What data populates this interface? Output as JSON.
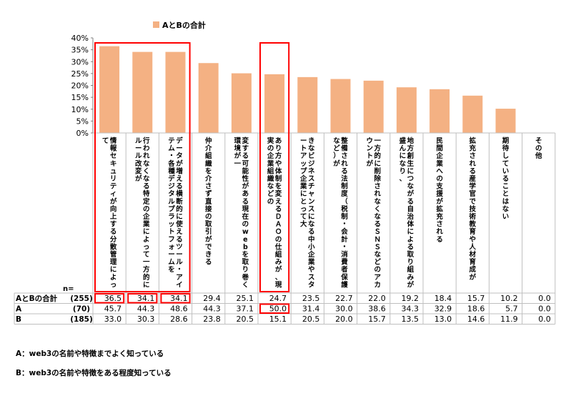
{
  "chart_data": {
    "type": "bar",
    "title": "",
    "xlabel": "",
    "ylabel": "",
    "ylim": [
      0,
      40
    ],
    "yticks": [
      "0%",
      "5%",
      "10%",
      "15%",
      "20%",
      "25%",
      "30%",
      "35%",
      "40%"
    ],
    "legend": {
      "position": "top",
      "label": "AとBの合計"
    },
    "grid": false,
    "bar_color": "#f4b183",
    "categories": [
      "情報セキュリティが向上する分散管理によって",
      "行われなくなる特定の企業によって一方的にルール改変が",
      "データが増える横断的に使えるツール・アイテム・各種デジタルプラットフォームを",
      "仲介組織を介さず直接の取引ができる",
      "変する可能性がある現在のwebを取り巻く環境が一",
      "あり方や体制を変えるＤＡＯの仕組みが、現実の企業組織などの",
      "きなビジネスチャンスになる中小企業やスタートアップ企業にとって大",
      "整備される法制度（税制・会計・消費者保護など）が",
      "一方的に削除されなくなるＳＮＳなどのアカウントが",
      "地方創生につながる自治体による取り組みが盛んになり、",
      "民間企業への支援が拡充される",
      "拡充される産学官で技術教育や人材育成が",
      "期待していることはない",
      "その他"
    ],
    "values": [
      36.5,
      34.1,
      34.1,
      29.4,
      25.1,
      24.7,
      23.5,
      22.7,
      22.0,
      19.2,
      18.4,
      15.7,
      10.2,
      0.0
    ],
    "highlighted_columns": [
      0,
      1,
      2,
      5
    ],
    "table": {
      "n_label": "n=",
      "rows": [
        {
          "label": "AとBの合計",
          "n": "(255)",
          "values": [
            "36.5",
            "34.1",
            "34.1",
            "29.4",
            "25.1",
            "24.7",
            "23.5",
            "22.7",
            "22.0",
            "19.2",
            "18.4",
            "15.7",
            "10.2",
            "0.0"
          ]
        },
        {
          "label": "A",
          "n": "(70)",
          "values": [
            "45.7",
            "44.3",
            "48.6",
            "44.3",
            "37.1",
            "50.0",
            "31.4",
            "30.0",
            "38.6",
            "34.3",
            "32.9",
            "18.6",
            "5.7",
            "0.0"
          ]
        },
        {
          "label": "B",
          "n": "(185)",
          "values": [
            "33.0",
            "30.3",
            "28.6",
            "23.8",
            "20.5",
            "15.1",
            "20.5",
            "20.0",
            "15.7",
            "13.5",
            "13.0",
            "14.6",
            "11.9",
            "0.0"
          ]
        }
      ],
      "highlighted_cells": [
        {
          "row": 0,
          "col": 0
        },
        {
          "row": 0,
          "col": 1
        },
        {
          "row": 0,
          "col": 2
        },
        {
          "row": 1,
          "col": 5
        }
      ]
    }
  },
  "notes": {
    "a": "A：web3の名前や特徴までよく知っている",
    "b": "B：web3の名前や特徴をある程度知っている"
  },
  "colors": {
    "bar": "#f4b183",
    "highlight": "#ff0000",
    "grid": "#bfbfbf"
  }
}
